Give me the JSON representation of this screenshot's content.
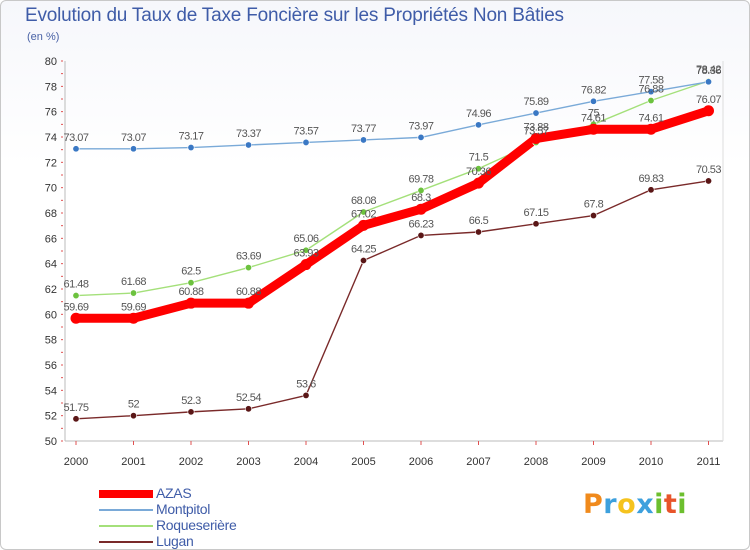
{
  "chart_data": {
    "type": "line",
    "title": "Evolution du Taux de Taxe Foncière sur les Propriétés Non Bâties",
    "ylabel": "(en %)",
    "xlabel": "",
    "ylim": [
      50,
      80
    ],
    "yticks": [
      50,
      52,
      54,
      56,
      58,
      60,
      62,
      64,
      66,
      68,
      70,
      72,
      74,
      76,
      78,
      80
    ],
    "grid": false,
    "legend_position": "bottom-left",
    "categories": [
      "2000",
      "2001",
      "2002",
      "2003",
      "2004",
      "2005",
      "2006",
      "2007",
      "2008",
      "2009",
      "2010",
      "2011"
    ],
    "series": [
      {
        "name": "AZAS",
        "color": "#ff0000",
        "values": [
          59.69,
          59.69,
          60.88,
          60.88,
          63.93,
          67.02,
          68.3,
          70.36,
          73.88,
          74.61,
          74.61,
          76.07
        ],
        "labels": [
          "59.69",
          "59.69",
          "60.88",
          "60.88",
          "63.93",
          "67.02",
          "68.3",
          "70.36",
          "73.88",
          "74.61",
          "74.61",
          "76.07"
        ]
      },
      {
        "name": "Montpitol",
        "color": "#7aaad8",
        "point_color": "#3a78c4",
        "values": [
          73.07,
          73.07,
          73.17,
          73.37,
          73.57,
          73.77,
          73.97,
          74.96,
          75.89,
          76.82,
          77.58,
          78.36
        ],
        "labels": [
          "73.07",
          "73.07",
          "73.17",
          "73.37",
          "73.57",
          "73.77",
          "73.97",
          "74.96",
          "75.89",
          "76.82",
          "77.58",
          "78.36"
        ]
      },
      {
        "name": "Roqueserière",
        "color": "#a4e07a",
        "point_color": "#6cc23e",
        "values": [
          61.48,
          61.68,
          62.5,
          63.69,
          65.06,
          68.08,
          69.78,
          71.5,
          73.57,
          75.0,
          76.88,
          78.42
        ],
        "labels": [
          "61.48",
          "61.68",
          "62.5",
          "63.69",
          "65.06",
          "68.08",
          "69.78",
          "71.5",
          "73.57",
          "75",
          "76.88",
          "78.42"
        ]
      },
      {
        "name": "Lugan",
        "color": "#7a2a2a",
        "point_color": "#5a1616",
        "values": [
          51.75,
          52.0,
          52.3,
          52.54,
          53.6,
          64.25,
          66.23,
          66.5,
          67.15,
          67.8,
          69.83,
          70.53
        ],
        "labels": [
          "51.75",
          "52",
          "52.3",
          "52.54",
          "53.6",
          "64.25",
          "66.23",
          "66.5",
          "67.15",
          "67.8",
          "69.83",
          "70.53"
        ]
      }
    ]
  },
  "logo": {
    "text": "Proxiti",
    "letters": [
      {
        "ch": "P",
        "color": "#f08a1c"
      },
      {
        "ch": "r",
        "color": "#3da0dd"
      },
      {
        "ch": "o",
        "color": "#f5c31e"
      },
      {
        "ch": "x",
        "color": "#3da0dd"
      },
      {
        "ch": "i",
        "color": "#6cbf2e"
      },
      {
        "ch": "t",
        "color": "#e8542a"
      },
      {
        "ch": "i",
        "color": "#6cbf2e"
      }
    ]
  }
}
